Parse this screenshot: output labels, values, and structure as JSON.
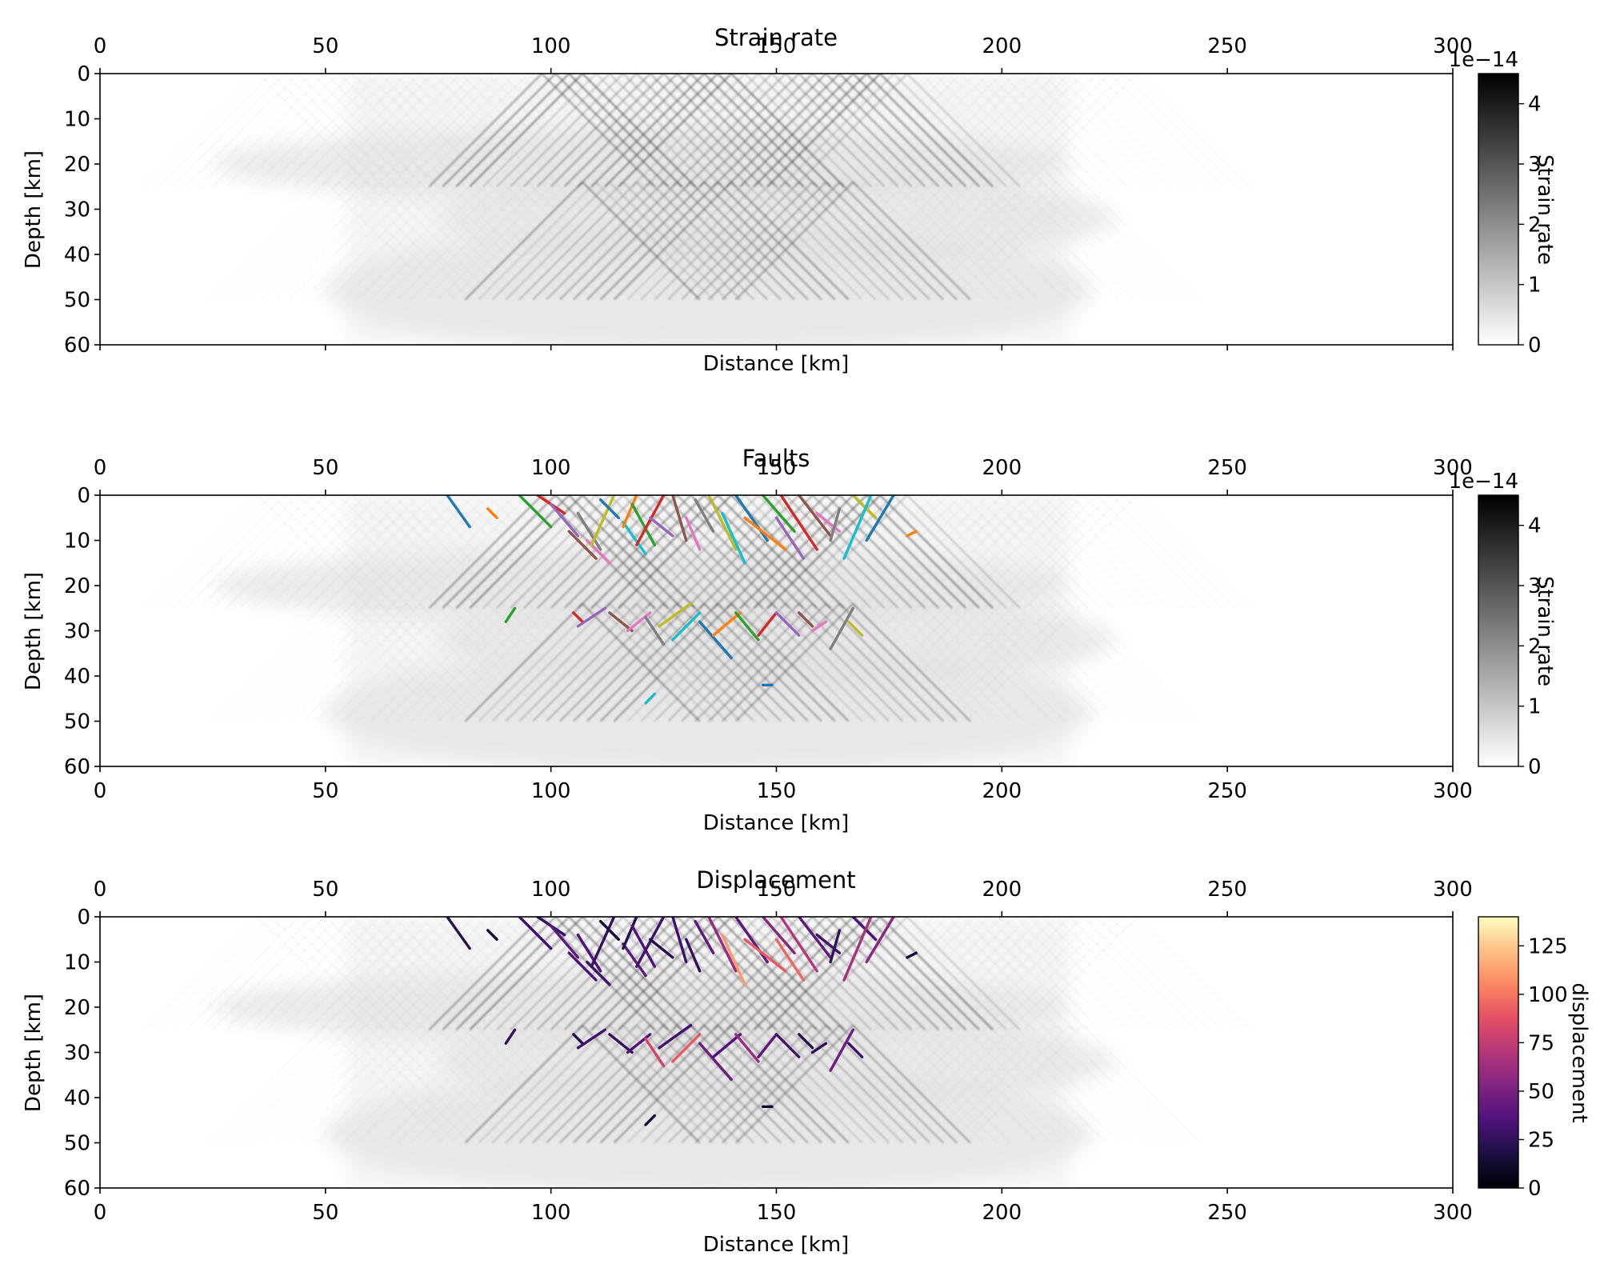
{
  "chart_data": [
    {
      "type": "heatmap",
      "title": "Strain rate",
      "xlabel": "Distance [km]",
      "ylabel": "Depth [km]",
      "xlim": [
        0,
        300
      ],
      "ylim": [
        60,
        0
      ],
      "x_ticks": [
        0,
        50,
        100,
        150,
        200,
        250,
        300
      ],
      "y_ticks": [
        0,
        10,
        20,
        30,
        40,
        50,
        60
      ],
      "colorbar": {
        "label": "Strain rate",
        "ticks": [
          0,
          1,
          2,
          3,
          4
        ],
        "ticks_shown": [
          "0",
          "1",
          "2",
          "3",
          "4"
        ],
        "offset_text": "1e−14",
        "colormap": "gray_r",
        "range": [
          0,
          4.5
        ]
      },
      "field": {
        "description_shown": "grey X-shaped shear band pattern",
        "upper_cone": {
          "x_range": [
            75,
            190
          ],
          "depth_range": [
            0,
            25
          ]
        },
        "lower_cone": {
          "x_range": [
            90,
            180
          ],
          "depth_range": [
            24,
            50
          ]
        },
        "envelope_x_range": [
          55,
          215
        ]
      }
    },
    {
      "type": "heatmap",
      "title": "Faults",
      "xlabel": "Distance [km]",
      "ylabel": "Depth [km]",
      "xlim": [
        0,
        300
      ],
      "ylim": [
        60,
        0
      ],
      "x_ticks": [
        0,
        50,
        100,
        150,
        200,
        250,
        300
      ],
      "y_ticks": [
        0,
        10,
        20,
        30,
        40,
        50,
        60
      ],
      "colorbar": {
        "label": "Strain rate",
        "ticks": [
          0,
          1,
          2,
          3,
          4
        ],
        "ticks_shown": [
          "0",
          "1",
          "2",
          "3",
          "4"
        ],
        "offset_text": "1e−14",
        "colormap": "gray_r",
        "range": [
          0,
          4.5
        ]
      },
      "fault_colors": [
        "#1f77b4",
        "#ff7f0e",
        "#2ca02c",
        "#d62728",
        "#9467bd",
        "#8c564b",
        "#e377c2",
        "#7f7f7f",
        "#bcbd22",
        "#17becf"
      ],
      "faults": [
        {
          "x": [
            77,
            82
          ],
          "y": [
            0,
            7
          ]
        },
        {
          "x": [
            86,
            88
          ],
          "y": [
            3,
            5
          ]
        },
        {
          "x": [
            93,
            100
          ],
          "y": [
            0,
            7
          ]
        },
        {
          "x": [
            97,
            103
          ],
          "y": [
            0,
            4
          ]
        },
        {
          "x": [
            100,
            106
          ],
          "y": [
            2,
            9
          ]
        },
        {
          "x": [
            104,
            110
          ],
          "y": [
            8,
            14
          ]
        },
        {
          "x": [
            108,
            113
          ],
          "y": [
            10,
            15
          ]
        },
        {
          "x": [
            106,
            111
          ],
          "y": [
            4,
            12
          ]
        },
        {
          "x": [
            114,
            109
          ],
          "y": [
            0,
            11
          ]
        },
        {
          "x": [
            116,
            121
          ],
          "y": [
            6,
            13
          ]
        },
        {
          "x": [
            111,
            115
          ],
          "y": [
            1,
            5
          ]
        },
        {
          "x": [
            119,
            116
          ],
          "y": [
            0,
            7
          ]
        },
        {
          "x": [
            118,
            123
          ],
          "y": [
            2,
            11
          ]
        },
        {
          "x": [
            125,
            119
          ],
          "y": [
            0,
            11
          ]
        },
        {
          "x": [
            122,
            127
          ],
          "y": [
            5,
            9
          ]
        },
        {
          "x": [
            127,
            130
          ],
          "y": [
            0,
            10
          ]
        },
        {
          "x": [
            130,
            133
          ],
          "y": [
            5,
            12
          ]
        },
        {
          "x": [
            132,
            136
          ],
          "y": [
            1,
            8
          ]
        },
        {
          "x": [
            135,
            141
          ],
          "y": [
            0,
            12
          ]
        },
        {
          "x": [
            138,
            143
          ],
          "y": [
            4,
            15
          ]
        },
        {
          "x": [
            141,
            148
          ],
          "y": [
            0,
            10
          ]
        },
        {
          "x": [
            143,
            152
          ],
          "y": [
            5,
            12
          ]
        },
        {
          "x": [
            147,
            154
          ],
          "y": [
            0,
            8
          ]
        },
        {
          "x": [
            151,
            159
          ],
          "y": [
            0,
            12
          ]
        },
        {
          "x": [
            150,
            156
          ],
          "y": [
            5,
            14
          ]
        },
        {
          "x": [
            155,
            162
          ],
          "y": [
            0,
            9
          ]
        },
        {
          "x": [
            159,
            164
          ],
          "y": [
            4,
            8
          ]
        },
        {
          "x": [
            164,
            162
          ],
          "y": [
            3,
            10
          ]
        },
        {
          "x": [
            167,
            172
          ],
          "y": [
            0,
            5
          ]
        },
        {
          "x": [
            171,
            165
          ],
          "y": [
            0,
            14
          ]
        },
        {
          "x": [
            176,
            170
          ],
          "y": [
            0,
            10
          ]
        },
        {
          "x": [
            179,
            181
          ],
          "y": [
            9,
            8
          ]
        },
        {
          "x": [
            90,
            92
          ],
          "y": [
            28,
            25
          ]
        },
        {
          "x": [
            105,
            107
          ],
          "y": [
            26,
            28
          ]
        },
        {
          "x": [
            106,
            112
          ],
          "y": [
            29,
            25
          ]
        },
        {
          "x": [
            113,
            118
          ],
          "y": [
            26,
            30
          ]
        },
        {
          "x": [
            117,
            122
          ],
          "y": [
            30,
            26
          ]
        },
        {
          "x": [
            121,
            125
          ],
          "y": [
            27,
            33
          ]
        },
        {
          "x": [
            124,
            131
          ],
          "y": [
            29,
            24
          ]
        },
        {
          "x": [
            127,
            133
          ],
          "y": [
            32,
            26
          ]
        },
        {
          "x": [
            133,
            140
          ],
          "y": [
            28,
            36
          ]
        },
        {
          "x": [
            136,
            142
          ],
          "y": [
            31,
            26
          ]
        },
        {
          "x": [
            141,
            146
          ],
          "y": [
            26,
            32
          ]
        },
        {
          "x": [
            146,
            150
          ],
          "y": [
            31,
            26
          ]
        },
        {
          "x": [
            150,
            155
          ],
          "y": [
            26,
            31
          ]
        },
        {
          "x": [
            155,
            158
          ],
          "y": [
            26,
            29
          ]
        },
        {
          "x": [
            158,
            161
          ],
          "y": [
            30,
            28
          ]
        },
        {
          "x": [
            162,
            167
          ],
          "y": [
            34,
            25
          ]
        },
        {
          "x": [
            166,
            169
          ],
          "y": [
            28,
            31
          ]
        },
        {
          "x": [
            121,
            123
          ],
          "y": [
            46,
            44
          ]
        },
        {
          "x": [
            147,
            149
          ],
          "y": [
            42,
            42
          ]
        }
      ]
    },
    {
      "type": "heatmap",
      "title": "Displacement",
      "xlabel": "Distance [km]",
      "ylabel": "Depth [km]",
      "xlim": [
        0,
        300
      ],
      "ylim": [
        60,
        0
      ],
      "x_ticks": [
        0,
        50,
        100,
        150,
        200,
        250,
        300
      ],
      "y_ticks": [
        0,
        10,
        20,
        30,
        40,
        50,
        60
      ],
      "colorbar": {
        "label": "displacement",
        "ticks": [
          0,
          25,
          50,
          75,
          100,
          125
        ],
        "ticks_shown": [
          "0",
          "25",
          "50",
          "75",
          "100",
          "125"
        ],
        "colormap": "magma",
        "range": [
          0,
          140
        ]
      },
      "fault_displacement": [
        20,
        15,
        30,
        25,
        40,
        35,
        30,
        35,
        25,
        40,
        15,
        20,
        35,
        30,
        20,
        30,
        25,
        40,
        60,
        110,
        40,
        90,
        55,
        70,
        95,
        40,
        30,
        25,
        35,
        65,
        55,
        15,
        25,
        20,
        30,
        25,
        35,
        80,
        30,
        90,
        45,
        35,
        60,
        40,
        30,
        20,
        25,
        45,
        30,
        15,
        10
      ]
    }
  ]
}
